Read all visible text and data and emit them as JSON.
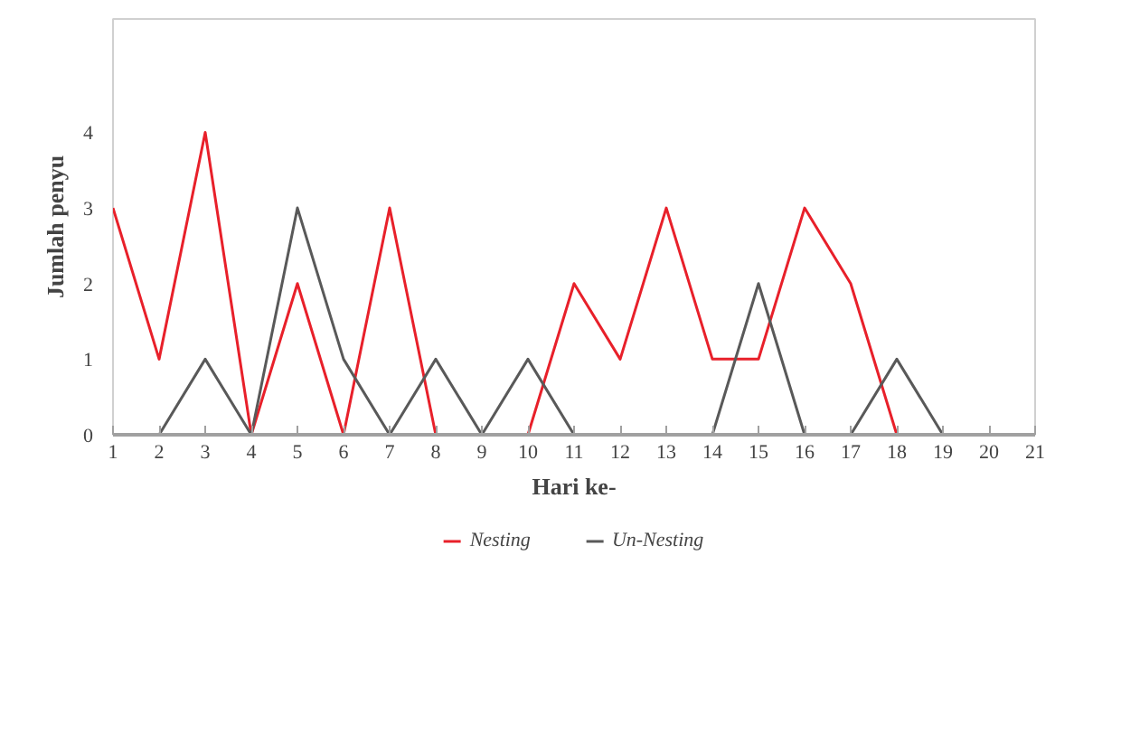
{
  "chart_data": {
    "type": "line",
    "xlabel": "Hari ke-",
    "ylabel": "Jumlah penyu",
    "x": [
      1,
      2,
      3,
      4,
      5,
      6,
      7,
      8,
      9,
      10,
      11,
      12,
      13,
      14,
      15,
      16,
      17,
      18,
      19
    ],
    "series": [
      {
        "name": "Nesting",
        "color": "#e8202a",
        "values": [
          3,
          1,
          4,
          0,
          2,
          0,
          3,
          0,
          null,
          0,
          2,
          1,
          3,
          1,
          1,
          3,
          2,
          0,
          null
        ]
      },
      {
        "name": "Un-Nesting",
        "color": "#595959",
        "values": [
          null,
          0,
          1,
          0,
          3,
          1,
          0,
          1,
          0,
          1,
          0,
          null,
          null,
          0,
          2,
          0,
          0,
          1,
          0
        ]
      }
    ],
    "xlim": [
      1,
      21
    ],
    "xticks": [
      1,
      2,
      3,
      4,
      5,
      6,
      7,
      8,
      9,
      10,
      11,
      12,
      13,
      14,
      15,
      16,
      17,
      18,
      19,
      20,
      21
    ],
    "ylim": [
      0,
      5.5
    ],
    "yticks": [
      0,
      1,
      2,
      3,
      4
    ],
    "grid": false,
    "legend": "bottom",
    "marker": "none",
    "line_style": "solid"
  }
}
